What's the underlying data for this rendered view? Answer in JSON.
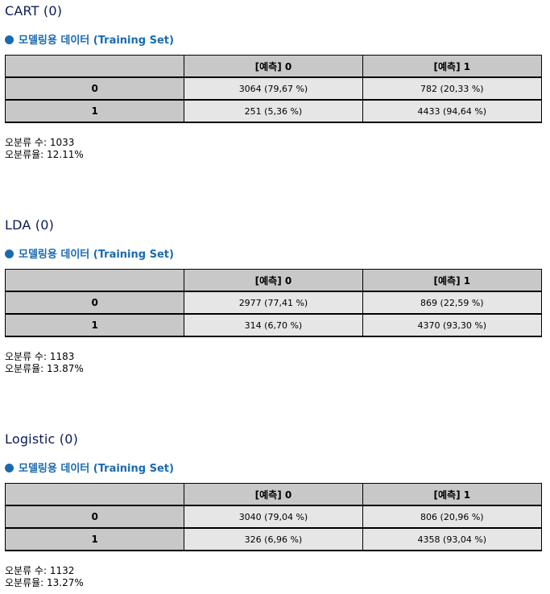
{
  "sections": [
    {
      "title": "CART (0)",
      "subtitle": "모델링용 데이터 (Training Set)",
      "headers": [
        "",
        "[예측] 0",
        "[예측] 1"
      ],
      "rows": [
        {
          "label": "0",
          "cells": [
            "3064 (79,67 %)",
            "782 (20,33 %)"
          ]
        },
        {
          "label": "1",
          "cells": [
            "251 (5,36 %)",
            "4433 (94,64 %)"
          ]
        }
      ],
      "stats": [
        "오분류 수: 1033",
        "오분류율: 12.11%"
      ]
    },
    {
      "title": "LDA (0)",
      "subtitle": "모델링용 데이터 (Training Set)",
      "headers": [
        "",
        "[예측] 0",
        "[예측] 1"
      ],
      "rows": [
        {
          "label": "0",
          "cells": [
            "2977 (77,41 %)",
            "869 (22,59 %)"
          ]
        },
        {
          "label": "1",
          "cells": [
            "314 (6,70 %)",
            "4370 (93,30 %)"
          ]
        }
      ],
      "stats": [
        "오분류 수: 1183",
        "오분류율: 13.87%"
      ]
    },
    {
      "title": "Logistic (0)",
      "subtitle": "모델링용 데이터 (Training Set)",
      "headers": [
        "",
        "[예측] 0",
        "[예측] 1"
      ],
      "rows": [
        {
          "label": "0",
          "cells": [
            "3040 (79,04 %)",
            "806 (20,96 %)"
          ]
        },
        {
          "label": "1",
          "cells": [
            "326 (6,96 %)",
            "4358 (93,04 %)"
          ]
        }
      ],
      "stats": [
        "오분류 수: 1132",
        "오분류율: 13.27%"
      ]
    }
  ]
}
